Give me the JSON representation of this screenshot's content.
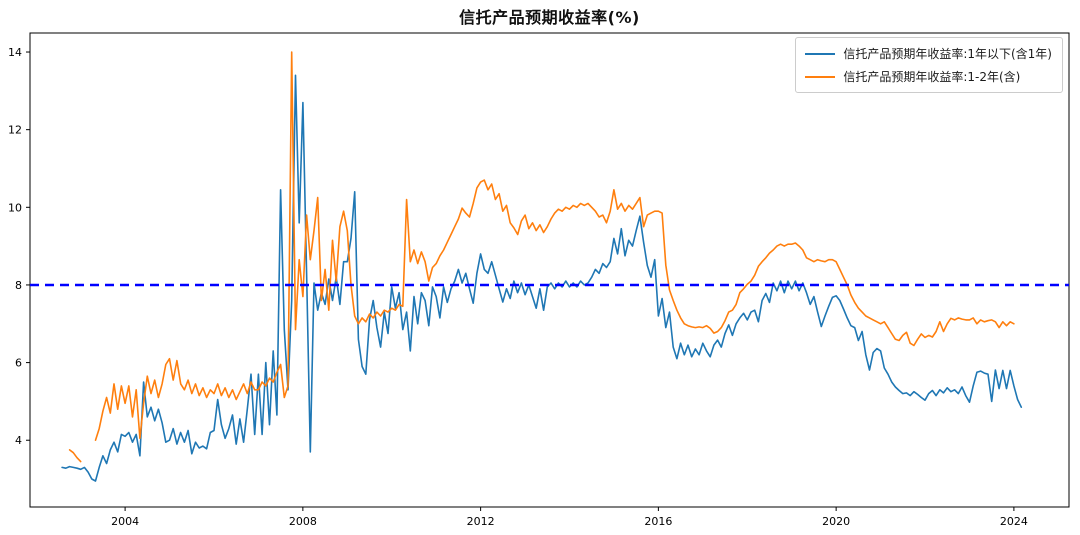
{
  "title": "信托产品预期收益率(%)",
  "legend": {
    "items": [
      {
        "label": "信托产品预期年收益率:1年以下(含1年)",
        "color": "#1f77b4"
      },
      {
        "label": "信托产品预期年收益率:1-2年(含)",
        "color": "#ff7f0e"
      }
    ]
  },
  "chart_data": {
    "type": "line",
    "title": "信托产品预期收益率(%)",
    "xlabel": "",
    "ylabel": "",
    "grid": false,
    "legend_position": "upper right",
    "x_axis": {
      "ticks": [
        2004,
        2008,
        2012,
        2016,
        2020,
        2024
      ],
      "range": [
        2001.86,
        2025.24
      ]
    },
    "y_axis": {
      "ticks": [
        4,
        6,
        8,
        10,
        12,
        14
      ],
      "range": [
        2.28,
        14.49
      ]
    },
    "reference_line": {
      "y": 8,
      "color": "#0000ff",
      "style": "dashed",
      "width": 2.5
    },
    "series": [
      {
        "name": "信托产品预期年收益率:1年以下(含1年)",
        "color": "#1f77b4",
        "x_start": 2002.5833,
        "x_step": 0.0833333,
        "values": [
          3.3,
          3.28,
          3.32,
          3.3,
          3.28,
          3.25,
          3.3,
          3.18,
          3.0,
          2.95,
          3.3,
          3.6,
          3.4,
          3.75,
          3.95,
          3.7,
          4.15,
          4.1,
          4.2,
          3.95,
          4.15,
          3.6,
          5.5,
          4.6,
          4.85,
          4.5,
          4.8,
          4.45,
          3.95,
          4.0,
          4.3,
          3.9,
          4.2,
          3.95,
          4.25,
          3.65,
          3.95,
          3.8,
          3.85,
          3.78,
          4.2,
          4.25,
          5.05,
          4.4,
          4.05,
          4.3,
          4.65,
          3.9,
          4.55,
          3.95,
          4.8,
          5.7,
          4.15,
          5.7,
          4.15,
          6.0,
          4.4,
          6.3,
          4.65,
          10.45,
          6.85,
          5.3,
          7.6,
          13.4,
          9.6,
          12.7,
          8.3,
          3.7,
          8.05,
          7.35,
          7.8,
          7.5,
          8.15,
          7.6,
          8.2,
          7.5,
          8.6,
          8.6,
          9.2,
          10.4,
          6.6,
          5.9,
          5.7,
          7.1,
          7.6,
          6.9,
          6.4,
          7.3,
          6.75,
          7.95,
          7.4,
          7.8,
          6.85,
          7.3,
          6.3,
          7.7,
          7.0,
          7.8,
          7.6,
          6.95,
          7.95,
          7.7,
          7.15,
          7.95,
          7.55,
          7.9,
          8.1,
          8.4,
          8.05,
          8.3,
          7.9,
          7.53,
          8.3,
          8.8,
          8.4,
          8.3,
          8.6,
          8.25,
          7.9,
          7.56,
          7.9,
          7.65,
          8.1,
          7.8,
          8.05,
          7.75,
          8.0,
          7.7,
          7.4,
          7.9,
          7.35,
          7.95,
          8.05,
          7.9,
          8.05,
          7.95,
          8.1,
          7.95,
          8.05,
          7.95,
          8.1,
          8.0,
          8.05,
          8.2,
          8.4,
          8.3,
          8.55,
          8.45,
          8.6,
          9.2,
          8.8,
          9.45,
          8.75,
          9.15,
          9.0,
          9.4,
          9.77,
          9.1,
          8.5,
          8.2,
          8.65,
          7.2,
          7.65,
          6.9,
          7.3,
          6.4,
          6.1,
          6.5,
          6.2,
          6.45,
          6.15,
          6.35,
          6.2,
          6.5,
          6.3,
          6.15,
          6.45,
          6.58,
          6.4,
          6.75,
          6.97,
          6.7,
          7.0,
          7.15,
          7.27,
          7.1,
          7.3,
          7.35,
          7.05,
          7.6,
          7.78,
          7.55,
          8.05,
          7.85,
          8.1,
          7.8,
          8.1,
          7.9,
          8.1,
          7.85,
          8.05,
          7.8,
          7.5,
          7.7,
          7.3,
          6.93,
          7.2,
          7.45,
          7.68,
          7.72,
          7.6,
          7.38,
          7.15,
          6.95,
          6.9,
          6.57,
          6.8,
          6.2,
          5.81,
          6.26,
          6.36,
          6.3,
          5.86,
          5.7,
          5.5,
          5.37,
          5.28,
          5.2,
          5.22,
          5.15,
          5.25,
          5.18,
          5.1,
          5.03,
          5.2,
          5.28,
          5.15,
          5.3,
          5.22,
          5.35,
          5.25,
          5.3,
          5.2,
          5.37,
          5.15,
          4.98,
          5.4,
          5.75,
          5.78,
          5.73,
          5.7,
          5.0,
          5.81,
          5.33,
          5.8,
          5.33,
          5.8,
          5.4,
          5.05,
          4.85
        ]
      },
      {
        "name": "信托产品预期年收益率:1-2年(含)",
        "color": "#ff7f0e",
        "x_start": 2002.75,
        "x_step": 0.0833333,
        "values": [
          3.75,
          3.68,
          3.55,
          3.45,
          null,
          null,
          null,
          4.0,
          4.3,
          4.75,
          5.1,
          4.7,
          5.45,
          4.8,
          5.4,
          4.95,
          5.4,
          4.6,
          5.3,
          4.05,
          4.95,
          5.65,
          5.2,
          5.55,
          5.1,
          5.45,
          5.95,
          6.1,
          5.55,
          6.05,
          5.45,
          5.3,
          5.55,
          5.2,
          5.45,
          5.15,
          5.35,
          5.1,
          5.3,
          5.2,
          5.45,
          5.15,
          5.35,
          5.1,
          5.3,
          5.05,
          5.25,
          5.45,
          5.2,
          5.5,
          5.3,
          5.3,
          5.5,
          5.4,
          5.6,
          5.5,
          5.75,
          5.95,
          5.1,
          5.4,
          14.0,
          6.85,
          8.65,
          7.7,
          9.8,
          8.65,
          9.4,
          10.25,
          7.6,
          8.4,
          7.35,
          9.15,
          8.1,
          9.5,
          9.9,
          9.4,
          8.0,
          7.2,
          7.0,
          7.15,
          7.05,
          7.25,
          7.15,
          7.3,
          7.2,
          7.35,
          7.3,
          7.4,
          7.35,
          7.5,
          7.45,
          10.2,
          8.6,
          8.9,
          8.55,
          8.85,
          8.6,
          8.1,
          8.45,
          8.55,
          8.75,
          8.9,
          9.1,
          9.3,
          9.5,
          9.7,
          9.98,
          9.85,
          9.75,
          10.1,
          10.5,
          10.65,
          10.7,
          10.45,
          10.6,
          10.2,
          10.35,
          9.9,
          10.05,
          9.6,
          9.47,
          9.3,
          9.65,
          9.8,
          9.45,
          9.6,
          9.4,
          9.55,
          9.35,
          9.5,
          9.7,
          9.85,
          9.95,
          9.9,
          10.0,
          9.95,
          10.05,
          10.0,
          10.1,
          10.05,
          10.1,
          10.0,
          9.9,
          9.75,
          9.8,
          9.6,
          9.9,
          10.45,
          9.95,
          10.1,
          9.9,
          10.05,
          9.95,
          10.1,
          10.25,
          9.5,
          9.8,
          9.85,
          9.9,
          9.9,
          9.85,
          8.51,
          7.87,
          7.6,
          7.35,
          7.15,
          7.0,
          6.95,
          6.92,
          6.9,
          6.92,
          6.9,
          6.95,
          6.88,
          6.76,
          6.8,
          6.9,
          7.08,
          7.3,
          7.35,
          7.5,
          7.8,
          7.9,
          8.02,
          8.1,
          8.25,
          8.48,
          8.6,
          8.7,
          8.82,
          8.9,
          9.0,
          9.05,
          9.0,
          9.05,
          9.05,
          9.08,
          9.0,
          8.9,
          8.7,
          8.65,
          8.6,
          8.65,
          8.62,
          8.6,
          8.65,
          8.65,
          8.6,
          8.4,
          8.2,
          8.0,
          7.74,
          7.55,
          7.4,
          7.3,
          7.2,
          7.15,
          7.1,
          7.05,
          7.0,
          7.05,
          6.9,
          6.75,
          6.6,
          6.57,
          6.7,
          6.78,
          6.5,
          6.44,
          6.6,
          6.74,
          6.65,
          6.7,
          6.66,
          6.8,
          7.05,
          6.8,
          7.0,
          7.14,
          7.1,
          7.15,
          7.12,
          7.1,
          7.1,
          7.15,
          7.0,
          7.1,
          7.05,
          7.08,
          7.1,
          7.05,
          6.9,
          7.05,
          6.95,
          7.05,
          7.0
        ]
      }
    ]
  }
}
